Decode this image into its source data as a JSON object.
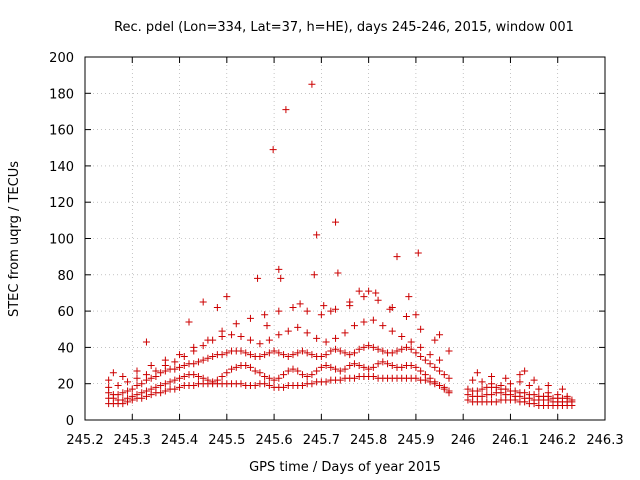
{
  "chart_data": {
    "type": "scatter",
    "title": "Rec. pdel (Lon=334, Lat=37, h=HE), days 245-246, 2015, window 001",
    "xlabel": "GPS time / Days of year 2015",
    "ylabel": "STEC from uqrg / TECUs",
    "xlim": [
      245.2,
      246.3
    ],
    "ylim": [
      0,
      200
    ],
    "xticks": [
      "245.2",
      "245.3",
      "245.4",
      "245.5",
      "245.6",
      "245.7",
      "245.8",
      "245.9",
      "246",
      "246.1",
      "246.2",
      "246.3"
    ],
    "yticks": [
      "0",
      "20",
      "40",
      "60",
      "80",
      "100",
      "120",
      "140",
      "160",
      "180",
      "200"
    ],
    "grid": true,
    "marker": "+",
    "color": "#cc0000",
    "series": [
      {
        "x": [
          245.25,
          245.26,
          245.27,
          245.28,
          245.29,
          245.3,
          245.31,
          245.32,
          245.33,
          245.34,
          245.35,
          245.36,
          245.37,
          245.38,
          245.39,
          245.4,
          245.41,
          245.42,
          245.43,
          245.44,
          245.45,
          245.46,
          245.47,
          245.48,
          245.49,
          245.5,
          245.51,
          245.52,
          245.53,
          245.54,
          245.55,
          245.56,
          245.57,
          245.58,
          245.59,
          245.6,
          245.61,
          245.62,
          245.63,
          245.64,
          245.65,
          245.66,
          245.67,
          245.68,
          245.69,
          245.7,
          245.71,
          245.72,
          245.73,
          245.74,
          245.75,
          245.76,
          245.77,
          245.78,
          245.79,
          245.8,
          245.81,
          245.82,
          245.83,
          245.84,
          245.85,
          245.86,
          245.87,
          245.88,
          245.89,
          245.9,
          245.91,
          245.92,
          245.93,
          245.94,
          245.95,
          245.96,
          245.97,
          246.01,
          246.02,
          246.03,
          246.04,
          246.05,
          246.06,
          246.07,
          246.08,
          246.09,
          246.1,
          246.11,
          246.12,
          246.13,
          246.14,
          246.15,
          246.16,
          246.17,
          246.18,
          246.19,
          246.2,
          246.21,
          246.22,
          246.23
        ],
        "y": [
          9,
          9,
          9,
          9,
          10,
          11,
          12,
          12,
          13,
          14,
          15,
          15,
          16,
          17,
          17,
          18,
          19,
          19,
          19,
          20,
          20,
          20,
          20,
          20,
          20,
          20,
          20,
          20,
          20,
          19,
          19,
          19,
          20,
          20,
          19,
          18,
          18,
          18,
          19,
          19,
          19,
          19,
          20,
          20,
          21,
          21,
          21,
          22,
          22,
          22,
          23,
          23,
          23,
          24,
          24,
          24,
          24,
          23,
          23,
          23,
          23,
          23,
          23,
          23,
          23,
          23,
          22,
          22,
          21,
          20,
          19,
          18,
          16,
          11,
          10,
          10,
          10,
          10,
          10,
          10,
          11,
          11,
          11,
          11,
          10,
          10,
          9,
          9,
          8,
          8,
          8,
          8,
          8,
          8,
          8,
          8
        ]
      },
      {
        "x": [
          245.25,
          245.26,
          245.27,
          245.28,
          245.29,
          245.3,
          245.31,
          245.32,
          245.33,
          245.34,
          245.35,
          245.36,
          245.37,
          245.38,
          245.39,
          245.4,
          245.41,
          245.42,
          245.43,
          245.44,
          245.45,
          245.46,
          245.47,
          245.48,
          245.49,
          245.5,
          245.51,
          245.52,
          245.53,
          245.54,
          245.55,
          245.56,
          245.57,
          245.58,
          245.59,
          245.6,
          245.61,
          245.62,
          245.63,
          245.64,
          245.65,
          245.66,
          245.67,
          245.68,
          245.69,
          245.7,
          245.71,
          245.72,
          245.73,
          245.74,
          245.75,
          245.76,
          245.77,
          245.78,
          245.79,
          245.8,
          245.81,
          245.82,
          245.83,
          245.84,
          245.85,
          245.86,
          245.87,
          245.88,
          245.89,
          245.9,
          245.91,
          245.92,
          245.93,
          245.94,
          245.95,
          245.96,
          245.97,
          246.01,
          246.02,
          246.03,
          246.04,
          246.05,
          246.06,
          246.07,
          246.08,
          246.09,
          246.1,
          246.11,
          246.12,
          246.13,
          246.14,
          246.15,
          246.16,
          246.17,
          246.18,
          246.19,
          246.2,
          246.21,
          246.22,
          246.23
        ],
        "y": [
          12,
          12,
          11,
          11,
          12,
          13,
          14,
          15,
          16,
          17,
          18,
          19,
          20,
          21,
          22,
          23,
          24,
          25,
          25,
          24,
          23,
          22,
          21,
          22,
          24,
          26,
          28,
          29,
          30,
          30,
          29,
          27,
          26,
          24,
          23,
          22,
          23,
          25,
          27,
          28,
          27,
          25,
          24,
          25,
          27,
          29,
          30,
          29,
          28,
          27,
          28,
          30,
          31,
          30,
          29,
          28,
          29,
          31,
          32,
          31,
          30,
          29,
          29,
          30,
          30,
          29,
          27,
          25,
          23,
          21,
          19,
          17,
          15,
          14,
          13,
          13,
          13,
          14,
          14,
          15,
          15,
          14,
          14,
          13,
          13,
          12,
          12,
          11,
          11,
          11,
          11,
          10,
          10,
          10,
          10,
          10
        ]
      },
      {
        "x": [
          245.25,
          245.26,
          245.27,
          245.28,
          245.29,
          245.3,
          245.31,
          245.32,
          245.33,
          245.34,
          245.35,
          245.36,
          245.37,
          245.38,
          245.39,
          245.4,
          245.41,
          245.42,
          245.43,
          245.44,
          245.45,
          245.46,
          245.47,
          245.48,
          245.49,
          245.5,
          245.51,
          245.52,
          245.53,
          245.54,
          245.55,
          245.56,
          245.57,
          245.58,
          245.59,
          245.6,
          245.61,
          245.62,
          245.63,
          245.64,
          245.65,
          245.66,
          245.67,
          245.68,
          245.69,
          245.7,
          245.71,
          245.72,
          245.73,
          245.74,
          245.75,
          245.76,
          245.77,
          245.78,
          245.79,
          245.8,
          245.81,
          245.82,
          245.83,
          245.84,
          245.85,
          245.86,
          245.87,
          245.88,
          245.89,
          245.9,
          245.91,
          245.92,
          245.93,
          245.94,
          245.95,
          245.96,
          245.97,
          246.01,
          246.02,
          246.03,
          246.04,
          246.05,
          246.06,
          246.07,
          246.08,
          246.09,
          246.1,
          246.11,
          246.12,
          246.13,
          246.14,
          246.15,
          246.16,
          246.17,
          246.18,
          246.19,
          246.2,
          246.21,
          246.22,
          246.23
        ],
        "y": [
          15,
          14,
          14,
          15,
          16,
          17,
          19,
          20,
          22,
          23,
          24,
          26,
          27,
          28,
          28,
          29,
          30,
          31,
          31,
          32,
          33,
          34,
          35,
          36,
          36,
          37,
          38,
          38,
          38,
          37,
          36,
          35,
          35,
          36,
          37,
          38,
          37,
          36,
          35,
          36,
          37,
          38,
          37,
          36,
          35,
          35,
          36,
          38,
          39,
          38,
          37,
          36,
          37,
          39,
          40,
          41,
          40,
          39,
          38,
          37,
          37,
          38,
          39,
          40,
          39,
          37,
          35,
          33,
          31,
          29,
          27,
          25,
          23,
          17,
          16,
          16,
          17,
          18,
          18,
          18,
          17,
          17,
          16,
          16,
          15,
          15,
          14,
          14,
          13,
          13,
          13,
          12,
          12,
          12,
          12,
          11
        ]
      },
      {
        "x": [
          245.25,
          245.27,
          245.29,
          245.31,
          245.33,
          245.35,
          245.37,
          245.39,
          245.41,
          245.43,
          245.45,
          245.47,
          245.49,
          245.51,
          245.53,
          245.55,
          245.57,
          245.59,
          245.61,
          245.63,
          245.65,
          245.67,
          245.69,
          245.71,
          245.73,
          245.75,
          245.77,
          245.79,
          245.81,
          245.83,
          245.85,
          245.87,
          245.89,
          245.91,
          245.93,
          245.95,
          246.02,
          246.04,
          246.06,
          246.08,
          246.1,
          246.12,
          246.14,
          246.16,
          246.18,
          246.2,
          246.22
        ],
        "y": [
          18,
          19,
          21,
          23,
          25,
          27,
          30,
          32,
          35,
          38,
          41,
          44,
          46,
          47,
          46,
          44,
          42,
          44,
          47,
          49,
          51,
          48,
          45,
          43,
          45,
          48,
          52,
          54,
          55,
          52,
          49,
          46,
          43,
          40,
          36,
          33,
          22,
          21,
          20,
          19,
          20,
          21,
          19,
          17,
          15,
          14,
          13
        ]
      },
      {
        "x": [
          245.25,
          245.28,
          245.31,
          245.34,
          245.37,
          245.4,
          245.43,
          245.46,
          245.49,
          245.52,
          245.55,
          245.58,
          245.61,
          245.64,
          245.67,
          245.7,
          245.73,
          245.76,
          245.79,
          245.82,
          245.85,
          245.88,
          245.91,
          245.94,
          245.97,
          246.03,
          246.06,
          246.09,
          246.12,
          246.15,
          246.18,
          246.21
        ],
        "y": [
          22,
          24,
          27,
          30,
          33,
          36,
          40,
          44,
          49,
          53,
          56,
          58,
          60,
          62,
          60,
          58,
          61,
          65,
          68,
          66,
          62,
          57,
          50,
          44,
          38,
          26,
          24,
          23,
          25,
          22,
          19,
          17
        ]
      },
      {
        "x": [
          245.26,
          245.33,
          245.42,
          245.45,
          245.48,
          245.5,
          245.565,
          245.585,
          245.598,
          245.61,
          245.614,
          245.625,
          245.655,
          245.68,
          245.685,
          245.69,
          245.705,
          245.72,
          245.73,
          245.735,
          245.76,
          245.78,
          245.8,
          245.815,
          245.845,
          245.86,
          245.885,
          245.9,
          245.905,
          245.95,
          246.13
        ],
        "y": [
          26,
          43,
          54,
          65,
          62,
          68,
          78,
          52,
          149,
          83,
          78,
          171,
          64,
          185,
          80,
          102,
          63,
          60,
          109,
          81,
          63,
          71,
          71,
          70,
          61,
          90,
          68,
          58,
          92,
          47,
          27
        ]
      }
    ]
  }
}
